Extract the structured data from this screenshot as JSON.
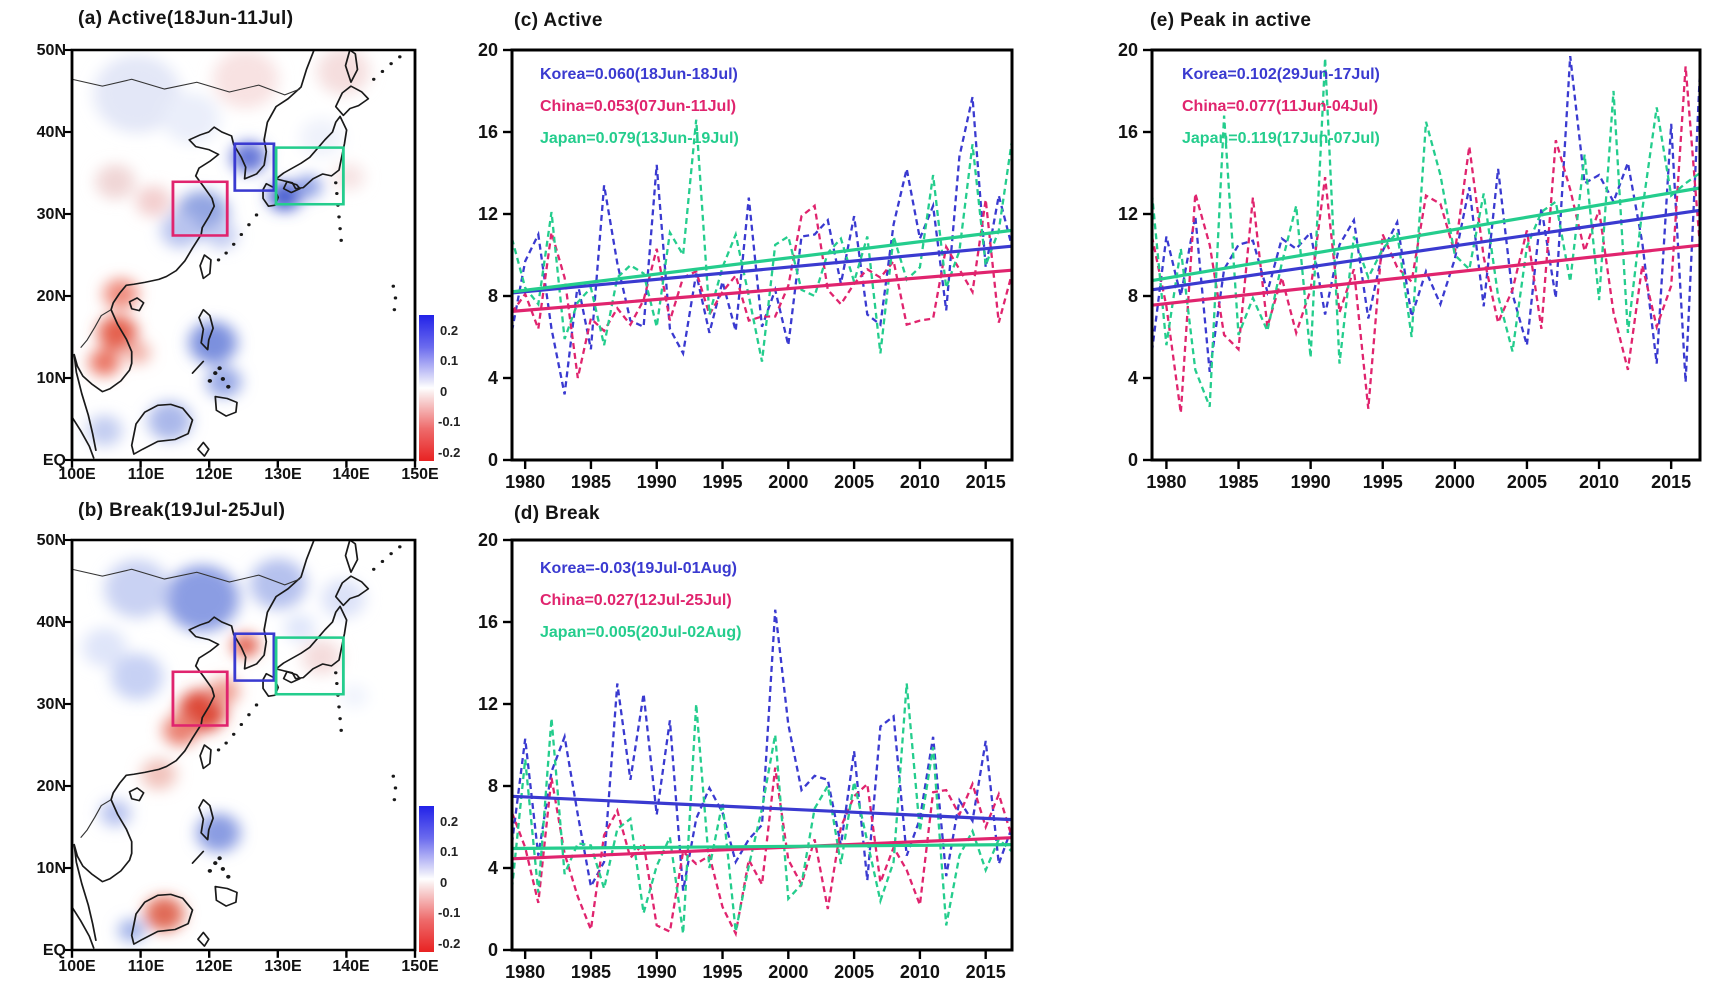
{
  "panels": {
    "a": {
      "title": "(a) Active(18Jun-11Jul)"
    },
    "b": {
      "title": "(b) Break(19Jul-25Jul)"
    },
    "c": {
      "title": "(c) Active"
    },
    "d": {
      "title": "(d) Break"
    },
    "e": {
      "title": "(e) Peak in active"
    }
  },
  "map_axes": {
    "lat_labels": [
      "50N",
      "40N",
      "30N",
      "20N",
      "10N",
      "EQ"
    ],
    "lon_labels": [
      "100E",
      "110E",
      "120E",
      "130E",
      "140E",
      "150E"
    ],
    "colorbar_labels": [
      "0.2",
      "0.1",
      "0",
      "-0.1",
      "-0.2"
    ]
  },
  "colors": {
    "korea": "#3a3ad0",
    "china": "#e0246e",
    "japan": "#24cd8d",
    "colorbar_blue": "#2222e8",
    "colorbar_red": "#e82222"
  },
  "legends": {
    "c": {
      "korea": "Korea=0.060(18Jun-18Jul)",
      "china": "China=0.053(07Jun-11Jul)",
      "japan": "Japan=0.079(13Jun-19Jul)"
    },
    "d": {
      "korea": "Korea=-0.03(19Jul-01Aug)",
      "china": "China=0.027(12Jul-25Jul)",
      "japan": "Japan=0.005(20Jul-02Aug)"
    },
    "e": {
      "korea": "Korea=0.102(29Jun-17Jul)",
      "china": "China=0.077(11Jun-04Jul)",
      "japan": "Japan=0.119(17Jun-07Jul)"
    }
  },
  "chart_data": [
    {
      "id": "a",
      "type": "heatmap",
      "title": "(a) Active(18Jun-11Jul)",
      "x_tick_labels": [
        "100E",
        "110E",
        "120E",
        "130E",
        "140E",
        "150E"
      ],
      "y_tick_labels": [
        "EQ",
        "10N",
        "20N",
        "30N",
        "40N",
        "50N"
      ],
      "colorbar_levels": [
        0.2,
        0.1,
        0,
        -0.1,
        -0.2
      ],
      "region_boxes": [
        "China",
        "Korea",
        "Japan"
      ],
      "legend_position": "colorbar-right"
    },
    {
      "id": "b",
      "type": "heatmap",
      "title": "(b) Break(19Jul-25Jul)",
      "x_tick_labels": [
        "100E",
        "110E",
        "120E",
        "130E",
        "140E",
        "150E"
      ],
      "y_tick_labels": [
        "EQ",
        "10N",
        "20N",
        "30N",
        "40N",
        "50N"
      ],
      "colorbar_levels": [
        0.2,
        0.1,
        0,
        -0.1,
        -0.2
      ],
      "region_boxes": [
        "China",
        "Korea",
        "Japan"
      ],
      "legend_position": "colorbar-right"
    },
    {
      "id": "c",
      "type": "line",
      "title": "(c) Active",
      "xlim": [
        1979,
        2017
      ],
      "ylim": [
        0,
        20
      ],
      "x_ticks": [
        1980,
        1985,
        1990,
        1995,
        2000,
        2005,
        2010,
        2015
      ],
      "y_ticks": [
        0,
        4,
        8,
        12,
        16,
        20
      ],
      "grid": false,
      "legend_position": "top-left",
      "series": [
        {
          "name": "Korea",
          "color_key": "korea",
          "style": "dashed",
          "values": [
            6.3,
            9.7,
            11.0,
            6.4,
            3.2,
            8.6,
            5.4,
            13.4,
            9.6,
            6.8,
            6.5,
            14.4,
            6.4,
            5.2,
            9.1,
            6.2,
            8.7,
            6.3,
            12.8,
            6.5,
            8.3,
            5.6,
            10.9,
            11.0,
            11.7,
            8.6,
            11.9,
            7.1,
            6.6,
            11.5,
            14.2,
            10.8,
            12.4,
            7.3,
            14.8,
            17.7,
            9.4,
            12.9,
            10.4
          ]
        },
        {
          "name": "China",
          "color_key": "china",
          "style": "dashed",
          "values": [
            7.2,
            8.1,
            6.4,
            11.1,
            8.9,
            4.0,
            6.9,
            6.3,
            7.4,
            6.6,
            7.8,
            10.3,
            6.8,
            8.9,
            9.2,
            7.1,
            8.2,
            9.0,
            6.8,
            7.0,
            7.0,
            8.5,
            11.9,
            12.4,
            8.3,
            7.6,
            8.6,
            9.3,
            8.9,
            9.7,
            6.6,
            6.8,
            6.9,
            10.4,
            9.3,
            8.2,
            12.7,
            6.7,
            9.1
          ]
        },
        {
          "name": "Japan",
          "color_key": "japan",
          "style": "dashed",
          "values": [
            10.8,
            8.4,
            7.6,
            12.1,
            5.9,
            7.7,
            8.4,
            5.6,
            8.9,
            9.5,
            9.1,
            6.5,
            11.1,
            10.0,
            16.6,
            7.1,
            9.4,
            11.0,
            8.0,
            4.8,
            10.5,
            10.9,
            8.3,
            8.0,
            10.1,
            10.8,
            8.7,
            10.9,
            5.2,
            10.9,
            8.8,
            9.4,
            13.9,
            8.4,
            10.2,
            15.4,
            9.5,
            11.2,
            15.6
          ]
        }
      ],
      "trends": [
        {
          "name": "Korea trend",
          "color_key": "korea",
          "slope": 0.06,
          "start": 8.15,
          "end": 10.43
        },
        {
          "name": "China trend",
          "color_key": "china",
          "slope": 0.053,
          "start": 7.25,
          "end": 9.26
        },
        {
          "name": "Japan trend",
          "color_key": "japan",
          "slope": 0.079,
          "start": 8.2,
          "end": 11.2
        }
      ]
    },
    {
      "id": "d",
      "type": "line",
      "title": "(d) Break",
      "xlim": [
        1979,
        2017
      ],
      "ylim": [
        0,
        20
      ],
      "x_ticks": [
        1980,
        1985,
        1990,
        1995,
        2000,
        2005,
        2010,
        2015
      ],
      "y_ticks": [
        0,
        4,
        8,
        12,
        16,
        20
      ],
      "grid": false,
      "legend_position": "top-left",
      "series": [
        {
          "name": "Korea",
          "color_key": "korea",
          "style": "dashed",
          "values": [
            5.2,
            10.3,
            4.6,
            8.7,
            10.4,
            6.6,
            3.1,
            4.3,
            13.0,
            8.3,
            12.5,
            6.6,
            11.2,
            2.9,
            6.4,
            7.9,
            6.7,
            4.3,
            5.4,
            6.1,
            16.6,
            11.0,
            7.8,
            8.5,
            8.3,
            5.1,
            9.7,
            3.4,
            10.9,
            11.4,
            4.6,
            6.4,
            10.4,
            3.6,
            7.3,
            6.3,
            10.2,
            4.2,
            6.0
          ]
        },
        {
          "name": "China",
          "color_key": "china",
          "style": "dashed",
          "values": [
            6.7,
            5.0,
            2.3,
            8.4,
            4.7,
            2.6,
            1.0,
            5.6,
            6.8,
            4.5,
            5.2,
            1.2,
            0.9,
            4.8,
            4.2,
            4.6,
            2.1,
            0.8,
            4.4,
            3.2,
            8.9,
            4.4,
            3.2,
            5.4,
            2.0,
            6.0,
            7.5,
            8.1,
            3.3,
            5.0,
            3.9,
            2.2,
            7.7,
            7.8,
            6.6,
            8.1,
            6.0,
            7.6,
            5.5
          ]
        },
        {
          "name": "Japan",
          "color_key": "japan",
          "style": "dashed",
          "values": [
            3.0,
            9.3,
            2.8,
            11.3,
            3.7,
            5.2,
            5.1,
            3.0,
            5.9,
            6.4,
            1.8,
            4.1,
            5.5,
            0.8,
            12.0,
            4.0,
            7.2,
            0.9,
            4.1,
            6.9,
            10.5,
            2.5,
            3.2,
            6.9,
            8.0,
            4.2,
            8.2,
            5.3,
            2.4,
            4.3,
            13.0,
            5.8,
            9.9,
            1.2,
            4.6,
            5.8,
            3.9,
            5.4,
            4.8
          ]
        }
      ],
      "trends": [
        {
          "name": "Korea trend",
          "color_key": "korea",
          "slope": -0.03,
          "start": 7.5,
          "end": 6.36
        },
        {
          "name": "China trend",
          "color_key": "china",
          "slope": 0.027,
          "start": 4.45,
          "end": 5.48
        },
        {
          "name": "Japan trend",
          "color_key": "japan",
          "slope": 0.005,
          "start": 4.95,
          "end": 5.14
        }
      ]
    },
    {
      "id": "e",
      "type": "line",
      "title": "(e) Peak in active",
      "xlim": [
        1979,
        2017
      ],
      "ylim": [
        0,
        20
      ],
      "x_ticks": [
        1980,
        1985,
        1990,
        1995,
        2000,
        2005,
        2010,
        2015
      ],
      "y_ticks": [
        0,
        4,
        8,
        12,
        16,
        20
      ],
      "grid": false,
      "legend_position": "top-left",
      "series": [
        {
          "name": "Korea",
          "color_key": "korea",
          "style": "dashed",
          "values": [
            5.3,
            10.9,
            8.0,
            11.9,
            4.3,
            9.3,
            10.5,
            10.7,
            8.2,
            10.8,
            10.3,
            11.1,
            7.1,
            10.5,
            11.7,
            6.9,
            10.2,
            11.6,
            7.0,
            9.2,
            7.6,
            9.8,
            13.3,
            7.5,
            14.2,
            8.1,
            5.6,
            12.3,
            7.9,
            19.7,
            13.5,
            13.9,
            12.6,
            14.5,
            10.6,
            4.7,
            16.4,
            3.8,
            19.0
          ]
        },
        {
          "name": "China",
          "color_key": "china",
          "style": "dashed",
          "values": [
            10.9,
            7.5,
            2.3,
            13.0,
            10.5,
            6.1,
            5.4,
            12.8,
            6.5,
            8.9,
            6.2,
            8.3,
            13.8,
            7.2,
            9.3,
            2.5,
            11.0,
            9.4,
            8.7,
            12.9,
            12.5,
            10.1,
            15.3,
            9.9,
            6.7,
            8.3,
            11.2,
            6.4,
            15.6,
            13.2,
            10.2,
            12.2,
            7.2,
            4.4,
            9.5,
            6.5,
            8.5,
            19.2,
            10.4
          ]
        },
        {
          "name": "Japan",
          "color_key": "japan",
          "style": "dashed",
          "values": [
            13.0,
            5.6,
            10.3,
            4.4,
            2.6,
            16.8,
            6.1,
            7.9,
            6.3,
            9.6,
            12.4,
            5.0,
            19.6,
            4.7,
            10.9,
            8.9,
            10.3,
            11.1,
            6.0,
            16.5,
            13.9,
            10.0,
            9.3,
            13.0,
            8.0,
            5.3,
            10.4,
            12.1,
            12.6,
            8.7,
            14.9,
            7.8,
            18.0,
            6.2,
            12.2,
            17.2,
            12.9,
            13.5,
            14.0
          ]
        }
      ],
      "trends": [
        {
          "name": "Korea trend",
          "color_key": "korea",
          "slope": 0.102,
          "start": 8.3,
          "end": 12.18
        },
        {
          "name": "China trend",
          "color_key": "china",
          "slope": 0.077,
          "start": 7.55,
          "end": 10.48
        },
        {
          "name": "Japan trend",
          "color_key": "japan",
          "slope": 0.119,
          "start": 8.75,
          "end": 13.27
        }
      ]
    }
  ]
}
